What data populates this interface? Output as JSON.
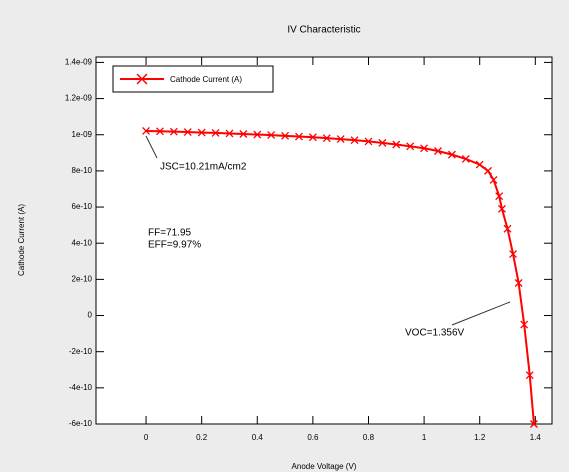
{
  "chart_data": {
    "type": "line",
    "title": "IV Characteristic",
    "x_label": "Anode Voltage (V)",
    "y_label": "Cathode Current (A)",
    "x": [
      0,
      0.05,
      0.1,
      0.15,
      0.2,
      0.25,
      0.3,
      0.35,
      0.4,
      0.45,
      0.5,
      0.55,
      0.6,
      0.65,
      0.7,
      0.75,
      0.8,
      0.85,
      0.9,
      0.95,
      1.0,
      1.05,
      1.1,
      1.15,
      1.2,
      1.23,
      1.25,
      1.27,
      1.28,
      1.3,
      1.32,
      1.34,
      1.36,
      1.38,
      1.395
    ],
    "series": [
      {
        "name": "Cathode Current (A)",
        "color": "#ff0000",
        "values": [
          1.021e-09,
          1.019e-09,
          1.017e-09,
          1.015e-09,
          1.012e-09,
          1.01e-09,
          1.007e-09,
          1.004e-09,
          1.001e-09,
          9.98e-10,
          9.94e-10,
          9.9e-10,
          9.86e-10,
          9.81e-10,
          9.76e-10,
          9.7e-10,
          9.63e-10,
          9.55e-10,
          9.46e-10,
          9.36e-10,
          9.25e-10,
          9.1e-10,
          8.9e-10,
          8.66e-10,
          8.35e-10,
          8e-10,
          7.5e-10,
          6.6e-10,
          5.9e-10,
          4.8e-10,
          3.4e-10,
          1.8e-10,
          -5e-11,
          -3.3e-10,
          -6e-10
        ]
      }
    ],
    "xlim": [
      -0.18,
      1.46
    ],
    "ylim": [
      -6e-10,
      1.43e-09
    ],
    "xticks": [
      0,
      0.2,
      0.4,
      0.6,
      0.8,
      1,
      1.2,
      1.4
    ],
    "yticks": [
      {
        "value": -6e-10,
        "label": "-6e-10"
      },
      {
        "value": -4e-10,
        "label": "-4e-10"
      },
      {
        "value": -2e-10,
        "label": "-2e-10"
      },
      0,
      {
        "value": 2e-10,
        "label": "2e-10"
      },
      {
        "value": 4e-10,
        "label": "4e-10"
      },
      {
        "value": 6e-10,
        "label": "6e-10"
      },
      {
        "value": 8e-10,
        "label": "8e-10"
      },
      {
        "value": 1e-09,
        "label": "1e-09"
      },
      {
        "value": 1.2e-09,
        "label": "1.2e-09"
      },
      {
        "value": 1.4e-09,
        "label": "1.4e-09"
      }
    ],
    "legend": "upper left",
    "annotations": [
      "JSC=10.21mA/cm2",
      "FF=71.95",
      "EFF=9.97%",
      "VOC=1.356V"
    ]
  }
}
